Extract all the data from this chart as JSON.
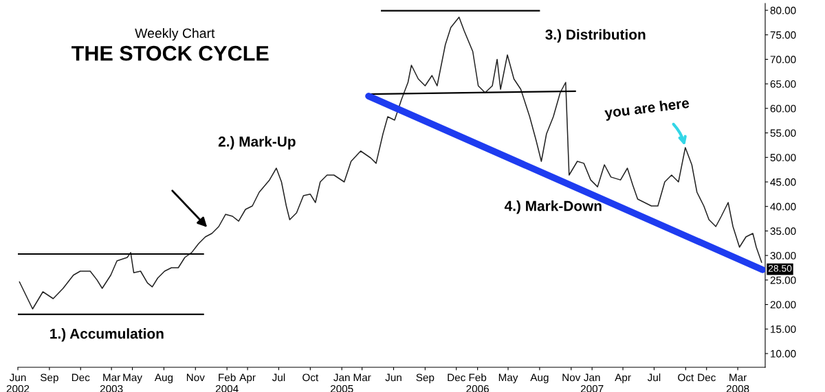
{
  "chart_data": {
    "type": "line",
    "title": "THE STOCK CYCLE",
    "subtitle": "Weekly Chart",
    "annotations": [
      "1.) Accumulation",
      "2.) Mark-Up",
      "3.) Distribution",
      "4.) Mark-Down",
      {
        "text": "you are here",
        "x": "2007-09-30",
        "y": 52
      },
      {
        "text": "28.50",
        "x": "2008-05-10",
        "y": 28.5
      }
    ],
    "xlim": [
      "2002-06-01",
      "2008-05-20"
    ],
    "xticks": [
      {
        "value": "2002-06-01",
        "label": "Jun\n2002"
      },
      {
        "value": "2002-09-01",
        "label": "Sep"
      },
      {
        "value": "2002-12-01",
        "label": "Dec"
      },
      {
        "value": "2003-03-01",
        "label": "Mar\n2003"
      },
      {
        "value": "2003-05-01",
        "label": "May"
      },
      {
        "value": "2003-08-01",
        "label": "Aug"
      },
      {
        "value": "2003-11-01",
        "label": "Nov"
      },
      {
        "value": "2004-02-01",
        "label": "Feb\n2004"
      },
      {
        "value": "2004-04-01",
        "label": "Apr"
      },
      {
        "value": "2004-07-01",
        "label": "Jul"
      },
      {
        "value": "2004-10-01",
        "label": "Oct"
      },
      {
        "value": "2005-01-01",
        "label": "Jan\n2005"
      },
      {
        "value": "2005-03-01",
        "label": "Mar"
      },
      {
        "value": "2005-06-01",
        "label": "Jun"
      },
      {
        "value": "2005-09-01",
        "label": "Sep"
      },
      {
        "value": "2005-12-01",
        "label": "Dec"
      },
      {
        "value": "2006-02-01",
        "label": "Feb\n2006"
      },
      {
        "value": "2006-05-01",
        "label": "May"
      },
      {
        "value": "2006-08-01",
        "label": "Aug"
      },
      {
        "value": "2006-11-01",
        "label": "Nov"
      },
      {
        "value": "2007-01-01",
        "label": "Jan\n2007"
      },
      {
        "value": "2007-04-01",
        "label": "Apr"
      },
      {
        "value": "2007-07-01",
        "label": "Jul"
      },
      {
        "value": "2007-10-01",
        "label": "Oct"
      },
      {
        "value": "2007-12-01",
        "label": "Dec"
      },
      {
        "value": "2008-03-01",
        "label": "Mar\n2008"
      }
    ],
    "ylim": [
      7.2,
      81.4
    ],
    "yticks": [
      {
        "value": 10,
        "label": "10.00"
      },
      {
        "value": 15,
        "label": "15.00"
      },
      {
        "value": 20,
        "label": "20.00"
      },
      {
        "value": 25,
        "label": "25.00"
      },
      {
        "value": 30,
        "label": "30.00"
      },
      {
        "value": 35,
        "label": "35.00"
      },
      {
        "value": 40,
        "label": "40.00"
      },
      {
        "value": 45,
        "label": "45.00"
      },
      {
        "value": 50,
        "label": "50.00"
      },
      {
        "value": 55,
        "label": "55.00"
      },
      {
        "value": 60,
        "label": "60.00"
      },
      {
        "value": 65,
        "label": "65.00"
      },
      {
        "value": 70,
        "label": "70.00"
      },
      {
        "value": 75,
        "label": "75.00"
      },
      {
        "value": 80,
        "label": "80.00"
      }
    ],
    "grid": false,
    "legend": false,
    "marker": "none",
    "line_style": "solid",
    "series": [
      {
        "color": "#222222",
        "x": [
          "2002-06-05",
          "2002-07-14",
          "2002-08-13",
          "2002-09-12",
          "2002-10-11",
          "2002-11-10",
          "2002-11-30",
          "2002-12-29",
          "2003-01-18",
          "2003-02-02",
          "2003-02-27",
          "2003-03-17",
          "2003-04-16",
          "2003-04-26",
          "2003-05-05",
          "2003-05-25",
          "2003-06-14",
          "2003-06-28",
          "2003-07-14",
          "2003-08-03",
          "2003-08-23",
          "2003-09-12",
          "2003-10-01",
          "2003-10-21",
          "2003-11-10",
          "2003-11-30",
          "2003-12-19",
          "2004-01-08",
          "2004-01-28",
          "2004-02-17",
          "2004-03-06",
          "2004-03-26",
          "2004-04-15",
          "2004-05-05",
          "2004-06-04",
          "2004-06-24",
          "2004-07-09",
          "2004-07-23",
          "2004-08-02",
          "2004-08-22",
          "2004-09-11",
          "2004-10-01",
          "2004-10-16",
          "2004-10-30",
          "2004-11-19",
          "2004-12-09",
          "2005-01-08",
          "2005-01-28",
          "2005-02-25",
          "2005-03-26",
          "2005-04-11",
          "2005-05-01",
          "2005-05-15",
          "2005-06-04",
          "2005-06-24",
          "2005-07-13",
          "2005-07-23",
          "2005-08-12",
          "2005-09-01",
          "2005-09-21",
          "2005-10-06",
          "2005-10-20",
          "2005-10-30",
          "2005-11-15",
          "2005-12-09",
          "2005-12-24",
          "2006-01-18",
          "2006-02-03",
          "2006-02-23",
          "2006-03-16",
          "2006-03-30",
          "2006-04-09",
          "2006-04-29",
          "2006-05-18",
          "2006-06-07",
          "2006-07-03",
          "2006-07-22",
          "2006-08-06",
          "2006-08-21",
          "2006-09-10",
          "2006-09-30",
          "2006-10-16",
          "2006-10-26",
          "2006-11-19",
          "2006-12-08",
          "2006-12-28",
          "2007-01-17",
          "2007-02-06",
          "2007-02-25",
          "2007-03-25",
          "2007-04-14",
          "2007-04-30",
          "2007-05-14",
          "2007-06-03",
          "2007-06-23",
          "2007-07-12",
          "2007-08-01",
          "2007-08-21",
          "2007-09-10",
          "2007-09-30",
          "2007-10-19",
          "2007-11-03",
          "2007-11-23",
          "2007-12-08",
          "2007-12-28",
          "2008-01-13",
          "2008-02-02",
          "2008-02-16",
          "2008-03-06",
          "2008-03-25",
          "2008-04-14",
          "2008-04-24",
          "2008-05-10"
        ],
        "values": [
          24.7,
          19.1,
          22.6,
          21.2,
          23.3,
          26,
          26.8,
          26.8,
          25,
          23.3,
          26,
          28.9,
          29.6,
          30.6,
          26.5,
          26.8,
          24.4,
          23.6,
          25.4,
          26.8,
          27.5,
          27.5,
          29.6,
          30.6,
          32.4,
          33.8,
          34.5,
          35.9,
          38.4,
          38,
          37,
          39.4,
          40.1,
          42.9,
          45.4,
          47.8,
          45,
          40.1,
          37.3,
          38.7,
          42.2,
          42.5,
          40.8,
          45,
          46.4,
          46.4,
          45,
          49.2,
          51.3,
          49.9,
          48.8,
          54.8,
          58.3,
          57.6,
          61.8,
          65.3,
          68.8,
          66,
          64.6,
          66.7,
          64.6,
          69.5,
          73,
          76.5,
          78.6,
          75.8,
          71.6,
          64.6,
          63.2,
          64.6,
          70,
          63.9,
          70.9,
          66,
          63.9,
          58.3,
          53.4,
          49.2,
          54.8,
          58.3,
          63.2,
          65.3,
          46.4,
          49.2,
          48.8,
          45.4,
          44,
          48.5,
          46,
          45.4,
          47.8,
          44.3,
          41.5,
          40.8,
          40.1,
          40.1,
          45,
          46.4,
          45,
          52,
          48.5,
          42.9,
          40.1,
          37.3,
          35.9,
          38,
          40.8,
          35.9,
          31.7,
          33.8,
          34.5,
          31.7,
          28.5
        ]
      },
      {
        "color": "#1e3cf0",
        "x": [
          "2005-03-20",
          "2008-05-12"
        ],
        "values": [
          62.5,
          27.1
        ]
      },
      {
        "color": "#000000",
        "x": [
          "2002-06-01",
          "2003-11-26"
        ],
        "values": [
          30.3,
          30.3
        ]
      },
      {
        "color": "#000000",
        "x": [
          "2002-06-01",
          "2003-11-26"
        ],
        "values": [
          18,
          18
        ]
      },
      {
        "color": "#000000",
        "x": [
          "2005-04-25",
          "2006-08-02"
        ],
        "values": [
          79.9,
          79.9
        ]
      },
      {
        "color": "#000000",
        "x": [
          "2005-03-20",
          "2006-11-15"
        ],
        "values": [
          62.9,
          63.5
        ]
      }
    ]
  }
}
